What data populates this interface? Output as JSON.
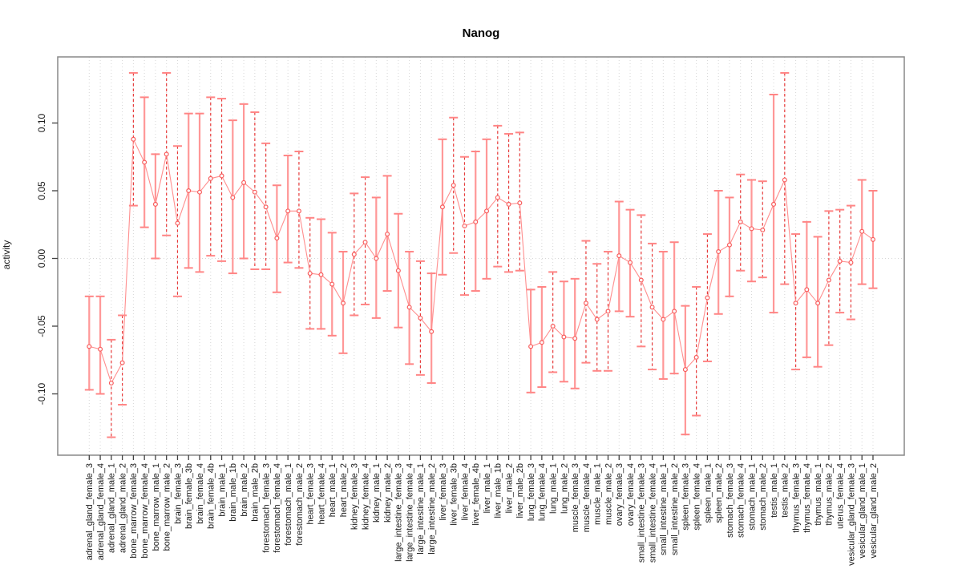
{
  "title": "Nanog",
  "y_axis_label": "activity",
  "colors": {
    "point_stroke": "#f85c5c",
    "series_line": "#ff8f8f",
    "errorbar_solid": "#ff9898",
    "errorbar_dashed": "#e83b3b",
    "errorbar_cap": "#ff8585",
    "gridline": "#d6d6d6",
    "zero_line": "#d6d6d6",
    "box_border": "#888888",
    "tick": "#404040",
    "tick_text": "#1a1a1a"
  },
  "chart_data": {
    "type": "line",
    "title": "Nanog",
    "xlabel": "",
    "ylabel": "activity",
    "ylim": [
      -0.145,
      0.149
    ],
    "grid": "vertical dotted gridline per category plus dotted horizontal line at y=0",
    "legend_position": "none",
    "y_ticks": [
      "0.10",
      "0.05",
      "0.00",
      "-0.05",
      "-0.10"
    ],
    "y_tick_values": [
      0.1,
      0.05,
      0.0,
      -0.05,
      -0.1
    ],
    "marker": "open-circle",
    "categories": [
      "adrenal_gland_female_3",
      "adrenal_gland_female_4",
      "adrenal_gland_male_1",
      "adrenal_gland_male_2",
      "bone_marrow_female_3",
      "bone_marrow_female_4",
      "bone_marrow_male_1",
      "bone_marrow_male_2",
      "brain_female_3",
      "brain_female_3b",
      "brain_female_4",
      "brain_female_4b",
      "brain_male_1",
      "brain_male_1b",
      "brain_male_2",
      "brain_male_2b",
      "forestomach_female_3",
      "forestomach_female_4",
      "forestomach_male_1",
      "forestomach_male_2",
      "heart_female_3",
      "heart_female_4",
      "heart_male_1",
      "heart_male_2",
      "kidney_female_3",
      "kidney_female_4",
      "kidney_male_1",
      "kidney_male_2",
      "large_intestine_female_3",
      "large_intestine_female_4",
      "large_intestine_male_1",
      "large_intestine_male_2",
      "liver_female_3",
      "liver_female_3b",
      "liver_female_4",
      "liver_female_4b",
      "liver_male_1",
      "liver_male_1b",
      "liver_male_2",
      "liver_male_2b",
      "lung_female_3",
      "lung_female_4",
      "lung_male_1",
      "lung_male_2",
      "muscle_female_3",
      "muscle_female_4",
      "muscle_male_1",
      "muscle_male_2",
      "ovary_female_3",
      "ovary_female_4",
      "small_intestine_female_3",
      "small_intestine_female_4",
      "small_intestine_male_1",
      "small_intestine_male_2",
      "spleen_female_3",
      "spleen_female_4",
      "spleen_male_1",
      "spleen_male_2",
      "stomach_female_3",
      "stomach_female_4",
      "stomach_male_1",
      "stomach_male_2",
      "testis_male_1",
      "testis_male_2",
      "thymus_female_3",
      "thymus_female_4",
      "thymus_male_1",
      "thymus_male_2",
      "uterus_female_4",
      "vesicular_gland_female_3",
      "vesicular_gland_male_1",
      "vesicular_gland_male_2"
    ],
    "series": [
      {
        "name": "activity",
        "values": [
          -0.065,
          -0.067,
          -0.092,
          -0.077,
          0.088,
          0.071,
          0.04,
          0.077,
          0.026,
          0.05,
          0.049,
          0.059,
          0.061,
          0.045,
          0.056,
          0.049,
          0.038,
          0.015,
          0.035,
          0.035,
          -0.011,
          -0.012,
          -0.019,
          -0.033,
          0.003,
          0.012,
          0.0,
          0.018,
          -0.009,
          -0.036,
          -0.044,
          -0.054,
          0.038,
          0.054,
          0.024,
          0.027,
          0.035,
          0.045,
          0.04,
          0.041,
          -0.065,
          -0.062,
          -0.05,
          -0.058,
          -0.059,
          -0.033,
          -0.045,
          -0.039,
          0.002,
          -0.003,
          -0.016,
          -0.036,
          -0.045,
          -0.039,
          -0.082,
          -0.073,
          -0.029,
          0.005,
          0.01,
          0.027,
          0.022,
          0.021,
          0.04,
          0.058,
          -0.033,
          -0.023,
          -0.033,
          -0.016,
          -0.002,
          -0.003,
          0.02,
          0.014
        ]
      }
    ],
    "error_bars": {
      "lower": [
        -0.097,
        -0.1,
        -0.132,
        -0.108,
        0.039,
        0.023,
        0.0,
        0.017,
        -0.028,
        -0.007,
        -0.01,
        0.002,
        -0.002,
        -0.011,
        0.0,
        -0.008,
        -0.008,
        -0.025,
        -0.003,
        -0.007,
        -0.052,
        -0.052,
        -0.057,
        -0.07,
        -0.042,
        -0.034,
        -0.044,
        -0.024,
        -0.051,
        -0.078,
        -0.086,
        -0.092,
        -0.012,
        0.004,
        -0.027,
        -0.024,
        -0.015,
        -0.006,
        -0.01,
        -0.009,
        -0.099,
        -0.095,
        -0.084,
        -0.091,
        -0.096,
        -0.077,
        -0.083,
        -0.083,
        -0.039,
        -0.043,
        -0.065,
        -0.082,
        -0.089,
        -0.085,
        -0.13,
        -0.116,
        -0.076,
        -0.041,
        -0.028,
        -0.009,
        -0.017,
        -0.014,
        -0.04,
        -0.019,
        -0.082,
        -0.073,
        -0.08,
        -0.064,
        -0.04,
        -0.045,
        -0.019,
        -0.022
      ],
      "upper": [
        -0.028,
        -0.028,
        -0.06,
        -0.042,
        0.137,
        0.119,
        0.077,
        0.137,
        0.083,
        0.107,
        0.107,
        0.119,
        0.118,
        0.102,
        0.114,
        0.108,
        0.085,
        0.054,
        0.076,
        0.079,
        0.03,
        0.029,
        0.019,
        0.005,
        0.048,
        0.06,
        0.045,
        0.061,
        0.033,
        0.005,
        -0.002,
        -0.011,
        0.088,
        0.104,
        0.075,
        0.079,
        0.088,
        0.098,
        0.092,
        0.093,
        -0.023,
        -0.021,
        -0.01,
        -0.017,
        -0.015,
        0.013,
        -0.004,
        0.005,
        0.042,
        0.036,
        0.032,
        0.011,
        0.005,
        0.012,
        -0.035,
        -0.021,
        0.018,
        0.05,
        0.045,
        0.062,
        0.058,
        0.057,
        0.121,
        0.137,
        0.018,
        0.027,
        0.016,
        0.035,
        0.036,
        0.039,
        0.058,
        0.05
      ],
      "dashed": [
        false,
        false,
        true,
        true,
        true,
        false,
        false,
        true,
        true,
        false,
        false,
        true,
        true,
        false,
        false,
        true,
        true,
        false,
        false,
        true,
        true,
        false,
        false,
        false,
        true,
        true,
        false,
        false,
        false,
        false,
        true,
        false,
        false,
        true,
        true,
        false,
        false,
        true,
        true,
        true,
        false,
        false,
        true,
        false,
        false,
        true,
        true,
        true,
        false,
        false,
        true,
        true,
        false,
        false,
        false,
        true,
        true,
        false,
        false,
        true,
        false,
        true,
        false,
        true,
        true,
        false,
        false,
        true,
        true,
        true,
        false,
        false
      ]
    }
  }
}
